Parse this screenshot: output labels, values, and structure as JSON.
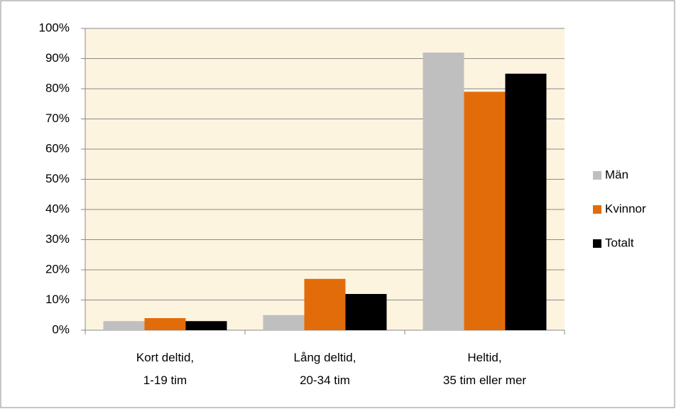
{
  "chart_data": {
    "type": "bar",
    "categories": [
      [
        "Kort deltid,",
        "1-19 tim"
      ],
      [
        "Lång deltid,",
        "20-34 tim"
      ],
      [
        "Heltid,",
        "35 tim eller mer"
      ]
    ],
    "series": [
      {
        "name": "Män",
        "color": "#bfbfbf",
        "values": [
          3,
          5,
          92
        ]
      },
      {
        "name": "Kvinnor",
        "color": "#e36c0a",
        "values": [
          4,
          17,
          79
        ]
      },
      {
        "name": "Totalt",
        "color": "#000000",
        "values": [
          3,
          12,
          85
        ]
      }
    ],
    "ylim": [
      0,
      100
    ],
    "yticks": [
      {
        "value": 0,
        "label": "0%"
      },
      {
        "value": 10,
        "label": "10%"
      },
      {
        "value": 20,
        "label": "20%"
      },
      {
        "value": 30,
        "label": "30%"
      },
      {
        "value": 40,
        "label": "40%"
      },
      {
        "value": 50,
        "label": "50%"
      },
      {
        "value": 60,
        "label": "60%"
      },
      {
        "value": 70,
        "label": "70%"
      },
      {
        "value": 80,
        "label": "80%"
      },
      {
        "value": 90,
        "label": "90%"
      },
      {
        "value": 100,
        "label": "100%"
      }
    ],
    "grid": true,
    "legend": "right"
  }
}
